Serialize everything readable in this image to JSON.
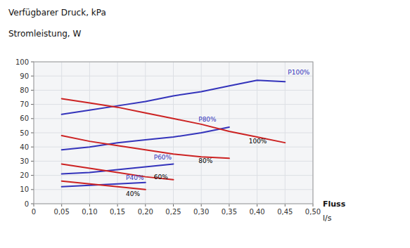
{
  "chart_data": {
    "type": "line",
    "title": "Verfügbarer Druck, kPa",
    "subtitle": "Stromleistung, W",
    "x_label": "Fluss",
    "x_label_unit": "l/s",
    "xlim": [
      0,
      0.5
    ],
    "ylim": [
      0,
      100
    ],
    "xticks": [
      0,
      {
        "value": 0.05,
        "label": "0,05"
      },
      {
        "value": 0.1,
        "label": "0,10"
      },
      {
        "value": 0.15,
        "label": "0,15"
      },
      {
        "value": 0.2,
        "label": "0,20"
      },
      {
        "value": 0.25,
        "label": "0,25"
      },
      {
        "value": 0.3,
        "label": "0,30"
      },
      {
        "value": 0.35,
        "label": "0,35"
      },
      {
        "value": 0.4,
        "label": "0,40"
      },
      {
        "value": 0.45,
        "label": "0,45"
      },
      {
        "value": 0.5,
        "label": "0,50"
      }
    ],
    "yticks": [
      0,
      10,
      20,
      30,
      40,
      50,
      60,
      70,
      80,
      90,
      100
    ],
    "grid": true,
    "series": [
      {
        "color": "#3333BB",
        "x": [
          0.05,
          0.1,
          0.15,
          0.2,
          0.25,
          0.3,
          0.35,
          0.4,
          0.45
        ],
        "values": [
          63,
          66,
          69,
          72,
          76,
          79,
          83,
          87,
          86
        ]
      },
      {
        "color": "#3333BB",
        "x": [
          0.05,
          0.1,
          0.15,
          0.2,
          0.25,
          0.3,
          0.35
        ],
        "values": [
          38,
          40,
          43,
          45,
          47,
          50,
          54
        ]
      },
      {
        "color": "#3333BB",
        "x": [
          0.05,
          0.1,
          0.15,
          0.2,
          0.25
        ],
        "values": [
          21,
          22,
          24,
          26,
          28
        ]
      },
      {
        "color": "#3333BB",
        "x": [
          0.05,
          0.1,
          0.15,
          0.2
        ],
        "values": [
          12,
          13,
          14,
          15
        ]
      },
      {
        "color": "#CC2222",
        "x": [
          0.05,
          0.1,
          0.15,
          0.2,
          0.25,
          0.3,
          0.35,
          0.4,
          0.45
        ],
        "values": [
          74,
          71,
          68,
          64,
          60,
          56,
          51,
          47,
          43
        ]
      },
      {
        "color": "#CC2222",
        "x": [
          0.05,
          0.1,
          0.15,
          0.2,
          0.25,
          0.3,
          0.35
        ],
        "values": [
          48,
          44,
          41,
          38,
          35,
          33,
          32
        ]
      },
      {
        "color": "#CC2222",
        "x": [
          0.05,
          0.1,
          0.15,
          0.2,
          0.25
        ],
        "values": [
          28,
          25,
          22,
          19,
          17
        ]
      },
      {
        "color": "#CC2222",
        "x": [
          0.05,
          0.1,
          0.15,
          0.2
        ],
        "values": [
          16,
          14,
          12,
          10
        ]
      }
    ],
    "annotations": [
      {
        "text": "P100%",
        "x": 0.455,
        "y": 90,
        "color": "#3333BB"
      },
      {
        "text": "P80%",
        "x": 0.295,
        "y": 57,
        "color": "#3333BB"
      },
      {
        "text": "P60%",
        "x": 0.215,
        "y": 30,
        "color": "#3333BB"
      },
      {
        "text": "P40%",
        "x": 0.165,
        "y": 16,
        "color": "#3333BB"
      },
      {
        "text": "100%",
        "x": 0.385,
        "y": 47,
        "color": "#000000"
      },
      {
        "text": "80%",
        "x": 0.295,
        "y": 33,
        "color": "#000000"
      },
      {
        "text": "60%",
        "x": 0.215,
        "y": 22,
        "color": "#000000"
      },
      {
        "text": "40%",
        "x": 0.165,
        "y": 10,
        "color": "#000000"
      }
    ]
  }
}
